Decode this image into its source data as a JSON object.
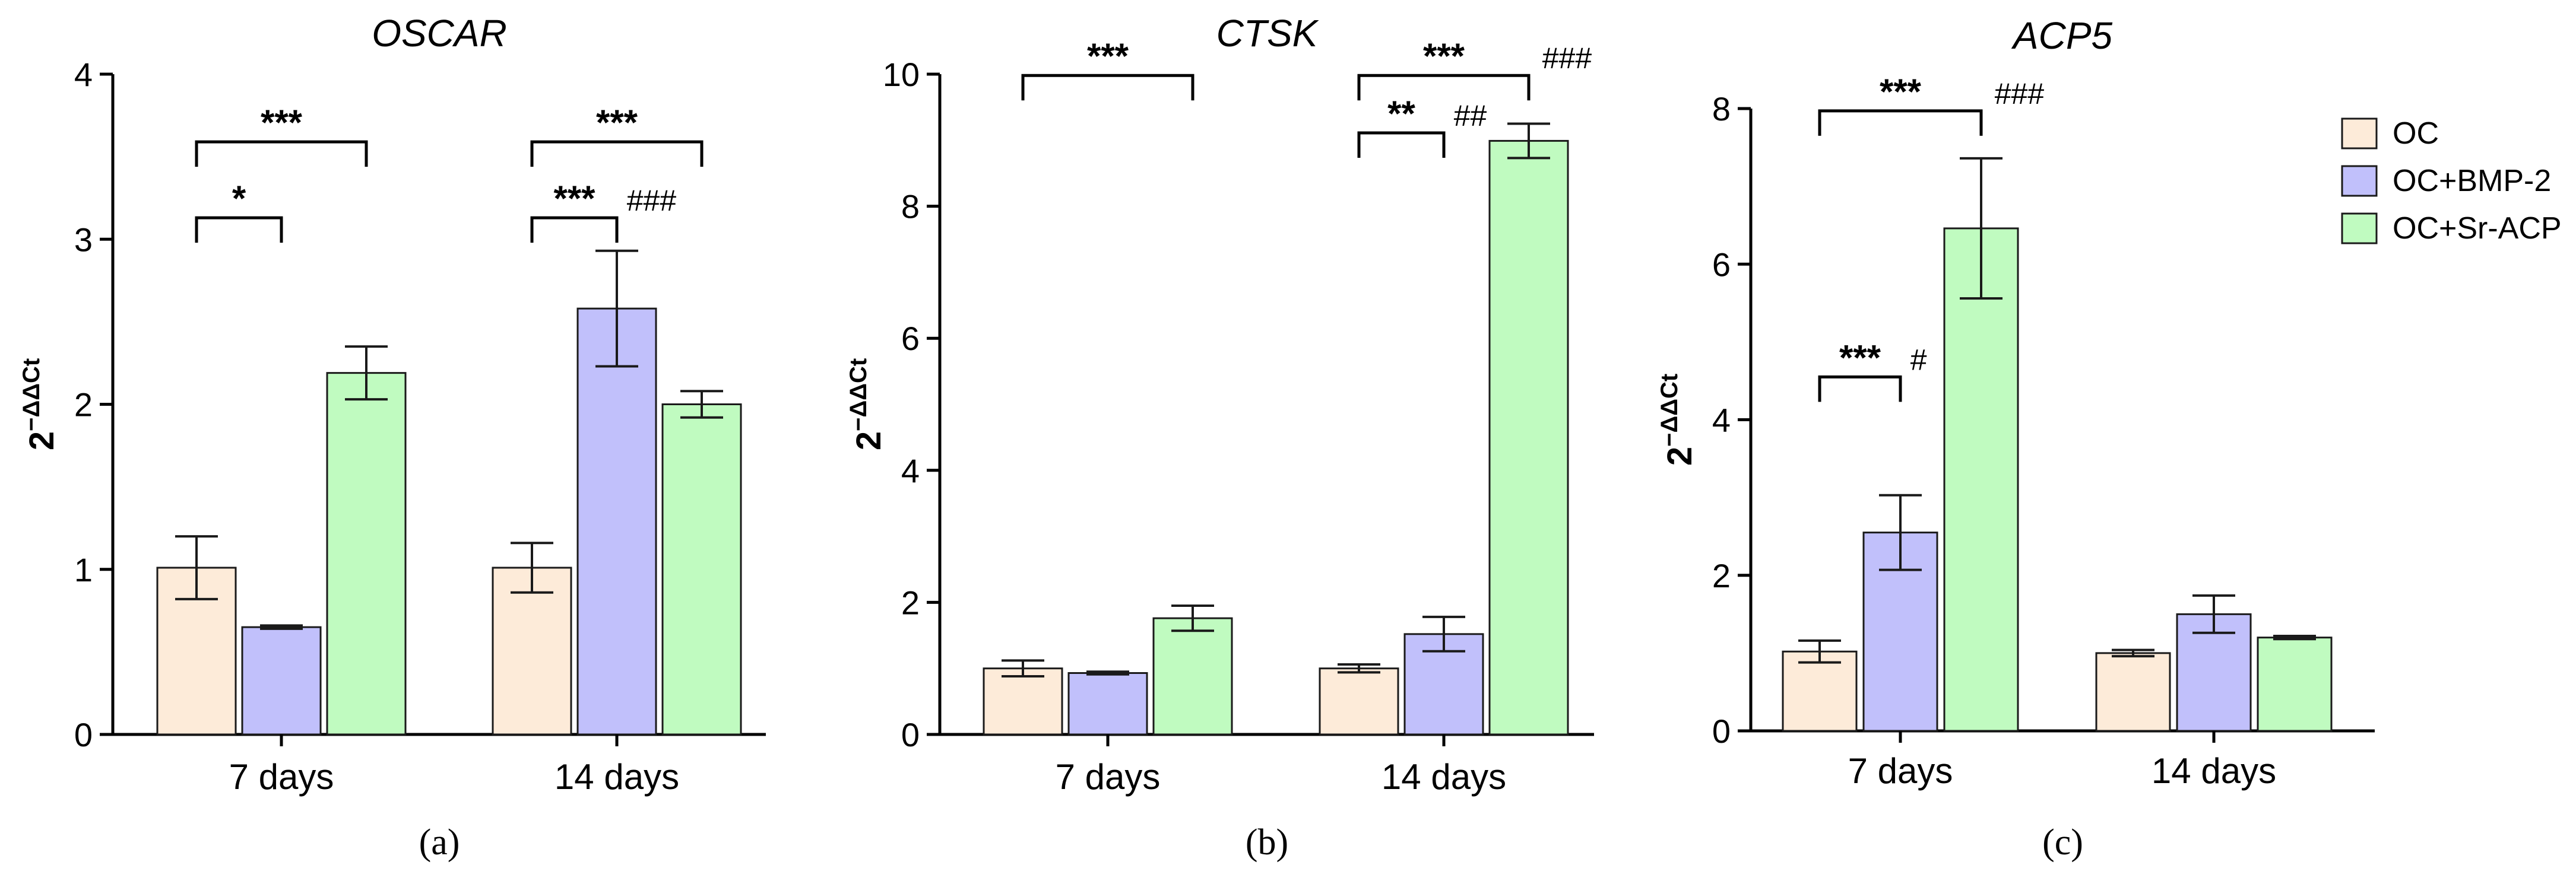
{
  "legend": [
    {
      "name": "OC",
      "color": "#fdebd9"
    },
    {
      "name": "OC+BMP-2",
      "color": "#c1c0fb"
    },
    {
      "name": "OC+Sr-ACP",
      "color": "#c0fbc0"
    }
  ],
  "chart_data": [
    {
      "type": "bar",
      "panel": "(a)",
      "title": "OSCAR",
      "ylabel": "2",
      "ylabel_exp": "−ΔΔCt",
      "ylim": [
        0,
        4
      ],
      "yticks": [
        0,
        1,
        2,
        3,
        4
      ],
      "categories": [
        "7 days",
        "14 days"
      ],
      "series": [
        {
          "name": "OC",
          "values": [
            1.01,
            1.01
          ],
          "errors": [
            0.19,
            0.15
          ]
        },
        {
          "name": "OC+BMP-2",
          "values": [
            0.65,
            2.58
          ],
          "errors": [
            0.01,
            0.35
          ]
        },
        {
          "name": "OC+Sr-ACP",
          "values": [
            2.19,
            2.0
          ],
          "errors": [
            0.16,
            0.08
          ]
        }
      ],
      "annotations": [
        {
          "cat": 0,
          "from": 0,
          "to": 1,
          "level": 3.13,
          "stars": "*",
          "hash": ""
        },
        {
          "cat": 0,
          "from": 0,
          "to": 2,
          "level": 3.59,
          "stars": "***",
          "hash": ""
        },
        {
          "cat": 1,
          "from": 0,
          "to": 1,
          "level": 3.13,
          "stars": "***",
          "hash": "###"
        },
        {
          "cat": 1,
          "from": 0,
          "to": 2,
          "level": 3.59,
          "stars": "***",
          "hash": ""
        }
      ]
    },
    {
      "type": "bar",
      "panel": "(b)",
      "title": "CTSK",
      "ylabel": "2",
      "ylabel_exp": "−ΔΔCt",
      "ylim": [
        0,
        10
      ],
      "yticks": [
        0,
        2,
        4,
        6,
        8,
        10
      ],
      "categories": [
        "7 days",
        "14 days"
      ],
      "series": [
        {
          "name": "OC",
          "values": [
            1.0,
            1.0
          ],
          "errors": [
            0.12,
            0.06
          ]
        },
        {
          "name": "OC+BMP-2",
          "values": [
            0.93,
            1.52
          ],
          "errors": [
            0.02,
            0.26
          ]
        },
        {
          "name": "OC+Sr-ACP",
          "values": [
            1.76,
            8.99
          ],
          "errors": [
            0.19,
            0.26
          ]
        }
      ],
      "annotations": [
        {
          "cat": 0,
          "from": 0,
          "to": 2,
          "level": 9.98,
          "stars": "***",
          "hash": ""
        },
        {
          "cat": 1,
          "from": 0,
          "to": 1,
          "level": 9.11,
          "stars": "**",
          "hash": "##"
        },
        {
          "cat": 1,
          "from": 0,
          "to": 2,
          "level": 9.98,
          "stars": "***",
          "hash": "###"
        }
      ]
    },
    {
      "type": "bar",
      "panel": "(c)",
      "title": "ACP5",
      "ylabel": "2",
      "ylabel_exp": "−ΔΔCt",
      "ylim": [
        0,
        8
      ],
      "yticks": [
        0,
        2,
        4,
        6,
        8
      ],
      "categories": [
        "7 days",
        "14 days"
      ],
      "series": [
        {
          "name": "OC",
          "values": [
            1.02,
            1.0
          ],
          "errors": [
            0.14,
            0.04
          ]
        },
        {
          "name": "OC+BMP-2",
          "values": [
            2.55,
            1.5
          ],
          "errors": [
            0.48,
            0.24
          ]
        },
        {
          "name": "OC+Sr-ACP",
          "values": [
            6.46,
            1.2
          ],
          "errors": [
            0.9,
            0.02
          ]
        }
      ],
      "annotations": [
        {
          "cat": 0,
          "from": 0,
          "to": 1,
          "level": 4.55,
          "stars": "***",
          "hash": "#"
        },
        {
          "cat": 0,
          "from": 0,
          "to": 2,
          "level": 7.97,
          "stars": "***",
          "hash": "###"
        }
      ]
    }
  ]
}
